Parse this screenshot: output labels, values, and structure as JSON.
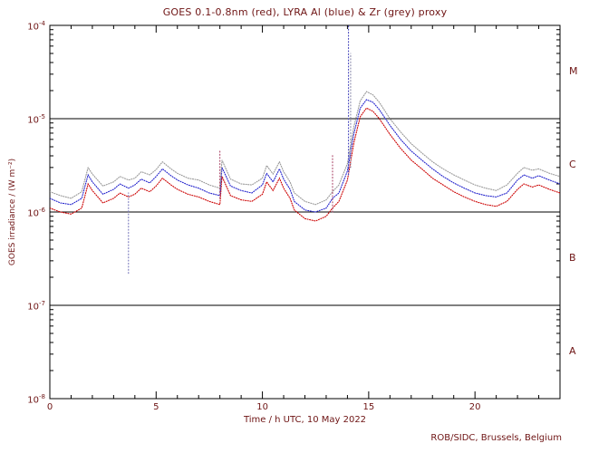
{
  "colors": {
    "text": "#6e1414",
    "frame": "#000000",
    "goes_red": "#cc0000",
    "lyra_al_blue": "#2222cc",
    "lyra_zr_grey": "#999999"
  },
  "chart_data": {
    "type": "line",
    "title": "GOES 0.1-0.8nm (red), LYRA Al (blue) & Zr (grey) proxy",
    "xlabel": "Time / h UTC, 10 May 2022",
    "ylabel": "GOES irradiance / (W m⁻²)",
    "credit": "ROB/SIDC, Brussels, Belgium",
    "xlim": [
      0,
      24
    ],
    "ylim": [
      1e-08,
      0.0001
    ],
    "y_log": true,
    "x_major_ticks": [
      0,
      5,
      10,
      15,
      20
    ],
    "x_minor_step": 1,
    "y_tick_exponents": [
      -4,
      -5,
      -6,
      -7,
      -8
    ],
    "hlines": [
      1e-05,
      1e-06,
      1e-07
    ],
    "class_labels": [
      {
        "label": "M",
        "value": 3.16e-05
      },
      {
        "label": "C",
        "value": 3.16e-06
      },
      {
        "label": "B",
        "value": 3.16e-07
      },
      {
        "label": "A",
        "value": 3.16e-08
      }
    ],
    "x": [
      0,
      0.5,
      1,
      1.5,
      1.8,
      2,
      2.5,
      3,
      3.3,
      3.7,
      4,
      4.3,
      4.7,
      5,
      5.3,
      5.7,
      6,
      6.5,
      7,
      7.5,
      8,
      8.1,
      8.5,
      9,
      9.5,
      10,
      10.2,
      10.5,
      10.8,
      11,
      11.3,
      11.5,
      12,
      12.5,
      13,
      13.3,
      13.6,
      14,
      14.3,
      14.6,
      14.9,
      15.2,
      15.5,
      16,
      16.5,
      17,
      17.5,
      18,
      18.5,
      19,
      19.5,
      20,
      20.5,
      21,
      21.5,
      22,
      22.3,
      22.7,
      23,
      23.5,
      24
    ],
    "series": [
      {
        "name": "GOES 0.1-0.8nm",
        "color": "#cc0000",
        "y": [
          1.1e-06,
          1e-06,
          9.5e-07,
          1.1e-06,
          2e-06,
          1.7e-06,
          1.25e-06,
          1.4e-06,
          1.6e-06,
          1.45e-06,
          1.55e-06,
          1.8e-06,
          1.65e-06,
          1.9e-06,
          2.3e-06,
          1.95e-06,
          1.75e-06,
          1.55e-06,
          1.45e-06,
          1.3e-06,
          1.2e-06,
          2.4e-06,
          1.5e-06,
          1.35e-06,
          1.3e-06,
          1.55e-06,
          2.1e-06,
          1.7e-06,
          2.3e-06,
          1.8e-06,
          1.4e-06,
          1.05e-06,
          8.5e-07,
          8e-07,
          9e-07,
          1.1e-06,
          1.3e-06,
          2.2e-06,
          5.5e-06,
          1.05e-05,
          1.3e-05,
          1.2e-05,
          1e-05,
          6.8e-06,
          4.8e-06,
          3.6e-06,
          2.9e-06,
          2.3e-06,
          1.95e-06,
          1.65e-06,
          1.45e-06,
          1.3e-06,
          1.2e-06,
          1.15e-06,
          1.3e-06,
          1.75e-06,
          2e-06,
          1.85e-06,
          1.95e-06,
          1.75e-06,
          1.6e-06
        ]
      },
      {
        "name": "LYRA Al proxy",
        "color": "#2222cc",
        "y": [
          1.4e-06,
          1.25e-06,
          1.2e-06,
          1.4e-06,
          2.5e-06,
          2.1e-06,
          1.55e-06,
          1.75e-06,
          2e-06,
          1.8e-06,
          1.95e-06,
          2.25e-06,
          2.05e-06,
          2.4e-06,
          2.9e-06,
          2.45e-06,
          2.2e-06,
          1.95e-06,
          1.8e-06,
          1.6e-06,
          1.5e-06,
          3e-06,
          1.9e-06,
          1.7e-06,
          1.6e-06,
          1.95e-06,
          2.6e-06,
          2.1e-06,
          2.9e-06,
          2.25e-06,
          1.75e-06,
          1.3e-06,
          1.05e-06,
          1e-06,
          1.1e-06,
          1.4e-06,
          1.6e-06,
          2.75e-06,
          6.9e-06,
          1.3e-05,
          1.6e-05,
          1.5e-05,
          1.25e-05,
          8.5e-06,
          6e-06,
          4.5e-06,
          3.6e-06,
          2.9e-06,
          2.4e-06,
          2.05e-06,
          1.8e-06,
          1.6e-06,
          1.5e-06,
          1.45e-06,
          1.6e-06,
          2.2e-06,
          2.5e-06,
          2.3e-06,
          2.45e-06,
          2.2e-06,
          2e-06
        ]
      },
      {
        "name": "LYRA Zr proxy",
        "color": "#999999",
        "y": [
          1.65e-06,
          1.5e-06,
          1.4e-06,
          1.65e-06,
          3e-06,
          2.55e-06,
          1.9e-06,
          2.1e-06,
          2.4e-06,
          2.2e-06,
          2.3e-06,
          2.7e-06,
          2.5e-06,
          2.85e-06,
          3.45e-06,
          2.9e-06,
          2.6e-06,
          2.3e-06,
          2.2e-06,
          1.95e-06,
          1.8e-06,
          3.6e-06,
          2.25e-06,
          2e-06,
          1.95e-06,
          2.3e-06,
          3.15e-06,
          2.55e-06,
          3.45e-06,
          2.7e-06,
          2.1e-06,
          1.6e-06,
          1.3e-06,
          1.2e-06,
          1.35e-06,
          1.65e-06,
          1.95e-06,
          3.3e-06,
          8.2e-06,
          1.55e-05,
          1.95e-05,
          1.8e-05,
          1.5e-05,
          1e-05,
          7.2e-06,
          5.4e-06,
          4.3e-06,
          3.45e-06,
          2.9e-06,
          2.5e-06,
          2.2e-06,
          1.95e-06,
          1.8e-06,
          1.7e-06,
          1.95e-06,
          2.6e-06,
          3e-06,
          2.8e-06,
          2.9e-06,
          2.6e-06,
          2.4e-06
        ]
      }
    ],
    "artifact_spikes": [
      {
        "x": 3.7,
        "y1": 2.2e-07,
        "y2": 1.6e-06,
        "color": "#7777bb"
      },
      {
        "x": 8.0,
        "y1": 1.4e-06,
        "y2": 4.6e-06,
        "color": "#aa4466"
      },
      {
        "x": 13.3,
        "y1": 1e-06,
        "y2": 4.2e-06,
        "color": "#aa4466"
      },
      {
        "x": 14.05,
        "y1": 2.5e-06,
        "y2": 0.00012,
        "color": "#4444bb"
      },
      {
        "x": 14.15,
        "y1": 3e-06,
        "y2": 5e-05,
        "color": "#8888aa"
      }
    ]
  }
}
